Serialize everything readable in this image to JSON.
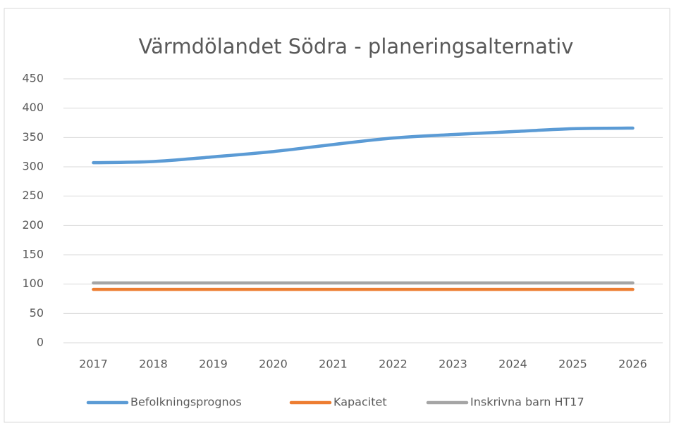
{
  "chart_data": {
    "type": "line",
    "title": "Värmdölandet Södra - planeringsalternativ",
    "categories": [
      "2017",
      "2018",
      "2019",
      "2020",
      "2021",
      "2022",
      "2023",
      "2024",
      "2025",
      "2026"
    ],
    "series": [
      {
        "name": "Befolkningsprognos",
        "color": "#5b9bd5",
        "values": [
          307,
          309,
          317,
          326,
          338,
          349,
          355,
          360,
          365,
          366
        ]
      },
      {
        "name": "Kapacitet",
        "color": "#ed7d31",
        "values": [
          91,
          91,
          91,
          91,
          91,
          91,
          91,
          91,
          91,
          91
        ]
      },
      {
        "name": "Inskrivna barn HT17",
        "color": "#a5a5a5",
        "values": [
          102,
          102,
          102,
          102,
          102,
          102,
          102,
          102,
          102,
          102
        ]
      }
    ],
    "ylim": [
      0,
      450
    ],
    "yticks": [
      0,
      50,
      100,
      150,
      200,
      250,
      300,
      350,
      400,
      450
    ],
    "grid": true,
    "legend": "bottom"
  }
}
